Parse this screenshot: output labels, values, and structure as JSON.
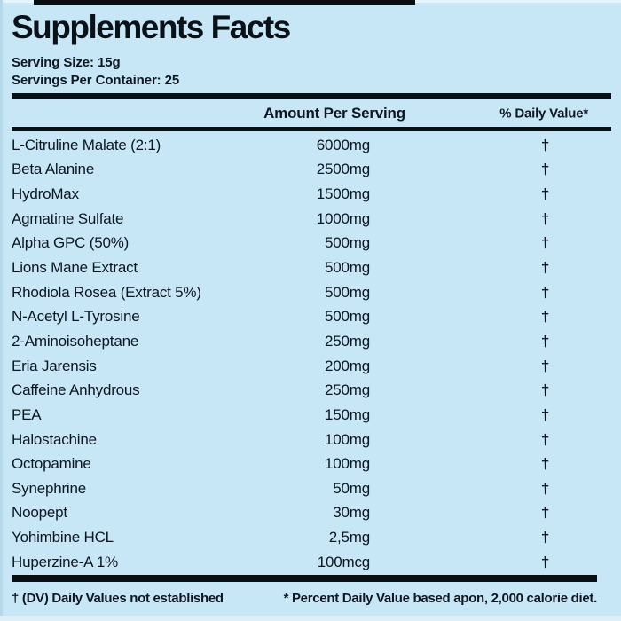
{
  "label": {
    "title": "Supplements Facts",
    "serving_size": "Serving Size: 15g",
    "servings_per_container": "Servings Per Container: 25",
    "columns": {
      "amount": "Amount Per Serving",
      "daily_value": "% Daily Value*"
    },
    "rows": [
      {
        "name": "L-Citruline Malate (2:1)",
        "amount": "6000mg",
        "dv": "†"
      },
      {
        "name": "Beta Alanine",
        "amount": "2500mg",
        "dv": "†"
      },
      {
        "name": "HydroMax",
        "amount": "1500mg",
        "dv": "†"
      },
      {
        "name": "Agmatine Sulfate",
        "amount": "1000mg",
        "dv": "†"
      },
      {
        "name": "Alpha GPC (50%)",
        "amount": "500mg",
        "dv": "†"
      },
      {
        "name": "Lions Mane Extract",
        "amount": "500mg",
        "dv": "†"
      },
      {
        "name": "Rhodiola Rosea (Extract 5%)",
        "amount": "500mg",
        "dv": "†"
      },
      {
        "name": "N-Acetyl L-Tyrosine",
        "amount": "500mg",
        "dv": "†"
      },
      {
        "name": "2-Aminoisoheptane",
        "amount": "250mg",
        "dv": "†"
      },
      {
        "name": "Eria Jarensis",
        "amount": "200mg",
        "dv": "†"
      },
      {
        "name": "Caffeine Anhydrous",
        "amount": "250mg",
        "dv": "†"
      },
      {
        "name": "PEA",
        "amount": "150mg",
        "dv": "†"
      },
      {
        "name": "Halostachine",
        "amount": "100mg",
        "dv": "†"
      },
      {
        "name": "Octopamine",
        "amount": "100mg",
        "dv": "†"
      },
      {
        "name": "Synephrine",
        "amount": "50mg",
        "dv": "†"
      },
      {
        "name": "Noopept",
        "amount": "30mg",
        "dv": "†"
      },
      {
        "name": "Yohimbine HCL",
        "amount": "2,5mg",
        "dv": "†"
      },
      {
        "name": "Huperzine-A 1%",
        "amount": "100mcg",
        "dv": "†"
      }
    ],
    "footnotes": {
      "left": "† (DV) Daily Values not established",
      "right": "* Percent Daily Value based apon, 2,000 calorie diet."
    },
    "colors": {
      "background": "#c7e7f7",
      "text": "#0e1720",
      "rule": "#0a0f14"
    }
  }
}
